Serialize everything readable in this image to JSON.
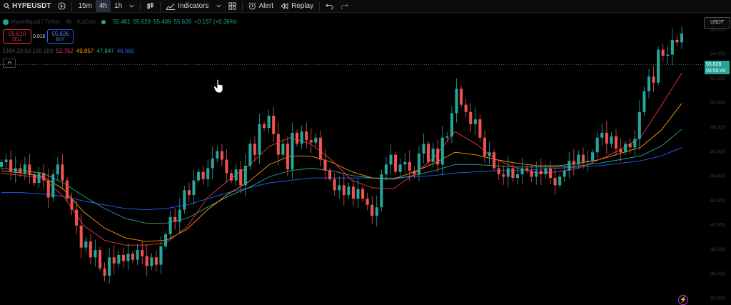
{
  "toolbar": {
    "search_icon": "search-icon",
    "symbol": "HYPEUSDT",
    "add_icon": "plus-circle-icon",
    "timeframes": [
      "15m",
      "4h",
      "1h"
    ],
    "active_timeframe": "4h",
    "indicators_label": "Indicators",
    "alert_label": "Alert",
    "replay_label": "Replay"
  },
  "legend": {
    "pair_title": "Hyperliquid / Tether · 4h · KuCoin",
    "open": "55.461",
    "high": "55.628",
    "low": "55.406",
    "close": "55.628",
    "change": "+0.197 (+0.36%)",
    "ema_label": "EMA 20 50 100 200",
    "ema_values": [
      {
        "value": "52.752",
        "color": "#f23645"
      },
      {
        "value": "49.857",
        "color": "#ff9800"
      },
      {
        "value": "47.847",
        "color": "#22ab94"
      },
      {
        "value": "46.060",
        "color": "#2962ff"
      }
    ]
  },
  "trade": {
    "sell_price": "55.610",
    "sell_label": "SELL",
    "spread": "0.016",
    "buy_price": "55.626",
    "buy_label": "BUY"
  },
  "currency": "USDT",
  "last_price": {
    "price": "55.628",
    "countdown": "03:55:44"
  },
  "axis_ticks": [
    "56.000",
    "54.000",
    "52.000",
    "50.000",
    "48.000",
    "46.000",
    "44.000",
    "42.000",
    "40.000",
    "38.000",
    "36.000",
    "34.000"
  ],
  "colors": {
    "up": "#26a69a",
    "down": "#ef5350",
    "ema20": "#f23645",
    "ema50": "#ff9800",
    "ema100": "#22ab94",
    "ema200": "#2962ff"
  },
  "chart_data": {
    "type": "candlestick",
    "y_axis_range": [
      33.4,
      57.2
    ],
    "close_series": [
      45.1,
      45.3,
      44.3,
      44.6,
      44.2,
      44.9,
      44.1,
      43.4,
      44.2,
      43.6,
      42.2,
      44.1,
      44.9,
      43.6,
      42.1,
      41.2,
      39.9,
      38.1,
      38.6,
      37.3,
      37.9,
      36.4,
      35.8,
      37.3,
      36.8,
      37.5,
      37.0,
      37.6,
      37.1,
      37.9,
      37.4,
      36.6,
      37.3,
      36.7,
      38.2,
      39.2,
      40.6,
      40.2,
      41.2,
      42.8,
      42.4,
      43.6,
      44.3,
      43.7,
      44.6,
      45.4,
      46.0,
      45.3,
      44.2,
      43.6,
      44.5,
      43.2,
      44.8,
      46.6,
      45.7,
      48.2,
      47.9,
      48.9,
      47.4,
      45.7,
      46.6,
      44.5,
      47.5,
      46.6,
      47.6,
      46.9,
      46.7,
      47.1,
      45.3,
      44.4,
      43.7,
      42.8,
      43.2,
      42.4,
      43.1,
      42.1,
      42.9,
      42.1,
      41.6,
      40.7,
      41.4,
      44.1,
      44.9,
      45.7,
      44.3,
      44.9,
      45.1,
      44.4,
      44.1,
      45.8,
      46.6,
      45.1,
      46.2,
      44.9,
      47.1,
      47.2,
      49.1,
      51.1,
      49.8,
      49.2,
      48.2,
      48.6,
      47.1,
      45.6,
      45.9,
      44.6,
      44.1,
      43.9,
      44.6,
      43.8,
      44.1,
      44.6,
      44.4,
      43.9,
      44.4,
      44.1,
      44.6,
      43.8,
      43.2,
      43.9,
      44.4,
      45.2,
      44.9,
      45.7,
      45.1,
      45.2,
      45.9,
      47.1,
      47.5,
      46.6,
      47.2,
      46.2,
      45.9,
      46.6,
      46.3,
      47.0,
      49.2,
      50.9,
      52.1,
      51.6,
      54.3,
      53.8,
      53.9,
      55.1,
      54.9,
      55.628
    ],
    "ema20_series": [
      44.2,
      44.0,
      43.8,
      42.3,
      39.9,
      38.7,
      38.3,
      38.3,
      38.5,
      39.8,
      42.2,
      43.6,
      44.8,
      46.4,
      47.1,
      46.6,
      45.3,
      43.6,
      43.0,
      42.9,
      44.1,
      45.5,
      47.6,
      46.6,
      45.3,
      44.6,
      44.2,
      44.3,
      44.6,
      45.3,
      46.1,
      47.1,
      49.7,
      52.4
    ],
    "ema50_series": [
      44.4,
      44.2,
      43.9,
      42.9,
      41.0,
      39.7,
      38.9,
      38.6,
      38.7,
      39.6,
      41.2,
      42.5,
      43.5,
      44.9,
      45.6,
      45.6,
      45.1,
      44.3,
      43.8,
      43.7,
      44.3,
      45.0,
      45.9,
      45.7,
      45.3,
      45.0,
      44.8,
      44.8,
      45.0,
      45.3,
      45.8,
      46.3,
      47.7,
      49.9
    ],
    "ema100_series": [
      44.6,
      44.4,
      44.2,
      43.4,
      42.3,
      41.3,
      40.5,
      40.1,
      40.1,
      40.5,
      41.4,
      42.3,
      43.0,
      43.9,
      44.4,
      44.6,
      44.4,
      44.0,
      43.8,
      43.7,
      44.0,
      44.4,
      44.9,
      44.9,
      44.8,
      44.7,
      44.7,
      44.7,
      44.8,
      45.0,
      45.3,
      45.6,
      46.4,
      47.8
    ],
    "ema200_series": [
      42.6,
      42.6,
      42.5,
      42.3,
      41.9,
      41.6,
      41.3,
      41.2,
      41.3,
      41.6,
      42.1,
      42.6,
      43.0,
      43.4,
      43.6,
      43.8,
      43.8,
      43.8,
      43.8,
      43.8,
      43.9,
      44.0,
      44.2,
      44.3,
      44.4,
      44.4,
      44.5,
      44.6,
      44.7,
      44.8,
      45.0,
      45.2,
      45.6,
      46.3
    ]
  }
}
